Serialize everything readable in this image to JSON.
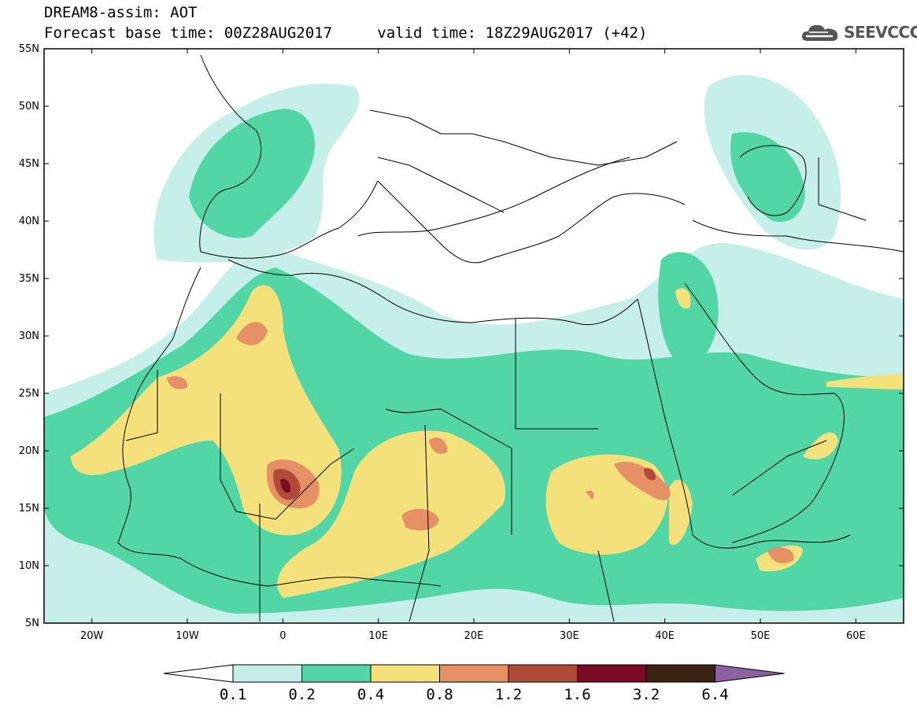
{
  "header": {
    "title": "DREAM8-assim: AOT",
    "forecast_base": "Forecast base time: 00Z28AUG2017",
    "valid_time": "valid time: 18Z29AUG2017 (+42)"
  },
  "logo": {
    "text": "SEEVCCC",
    "icon": "cloud-icon"
  },
  "map": {
    "lon_range": [
      -25,
      65
    ],
    "lat_range": [
      5,
      55
    ],
    "lat_labels": [
      "55N",
      "50N",
      "45N",
      "40N",
      "35N",
      "30N",
      "25N",
      "20N",
      "15N",
      "10N",
      "5N"
    ],
    "lon_labels": [
      "20W",
      "10W",
      "0",
      "10E",
      "20E",
      "30E",
      "40E",
      "50E",
      "60E"
    ]
  },
  "legend": {
    "labels": [
      "0.1",
      "0.2",
      "0.4",
      "0.8",
      "1.2",
      "1.6",
      "3.2",
      "6.4"
    ],
    "colors": [
      "#ffffff",
      "#c6efe9",
      "#52d6a6",
      "#f5e17c",
      "#e69066",
      "#b24a3a",
      "#7d0a24",
      "#3b2314",
      "#8e5fa3"
    ]
  },
  "colors": {
    "level1": "#c6efe9",
    "level2": "#52d6a6",
    "level3": "#f5e17c",
    "level4": "#e69066",
    "level5": "#b24a3a",
    "level6": "#7d0a24"
  }
}
